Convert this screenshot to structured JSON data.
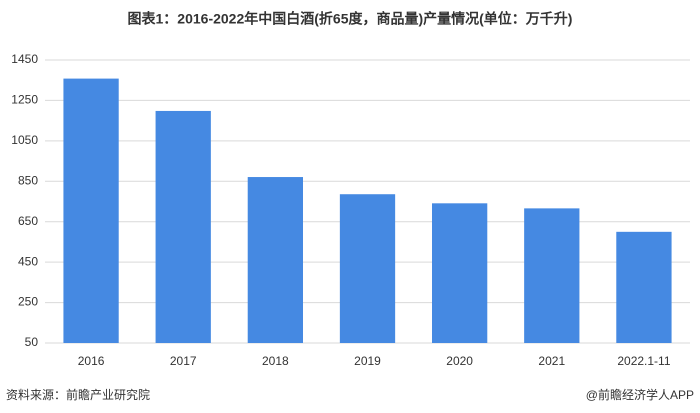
{
  "chart_data": {
    "type": "bar",
    "title": "图表1：2016-2022年中国白酒(折65度，商品量)产量情况(单位：万千升)",
    "categories": [
      "2016",
      "2017",
      "2018",
      "2019",
      "2020",
      "2021",
      "2022.1-11"
    ],
    "values": [
      1358,
      1198,
      871,
      786,
      741,
      716,
      600
    ],
    "color": "#4589e2",
    "ylim": [
      50,
      1450
    ],
    "yticks": [
      50,
      250,
      450,
      650,
      850,
      1050,
      1250,
      1450
    ],
    "grid": true,
    "source": "资料来源：前瞻产业研究院",
    "credit": "@前瞻经济学人APP"
  }
}
